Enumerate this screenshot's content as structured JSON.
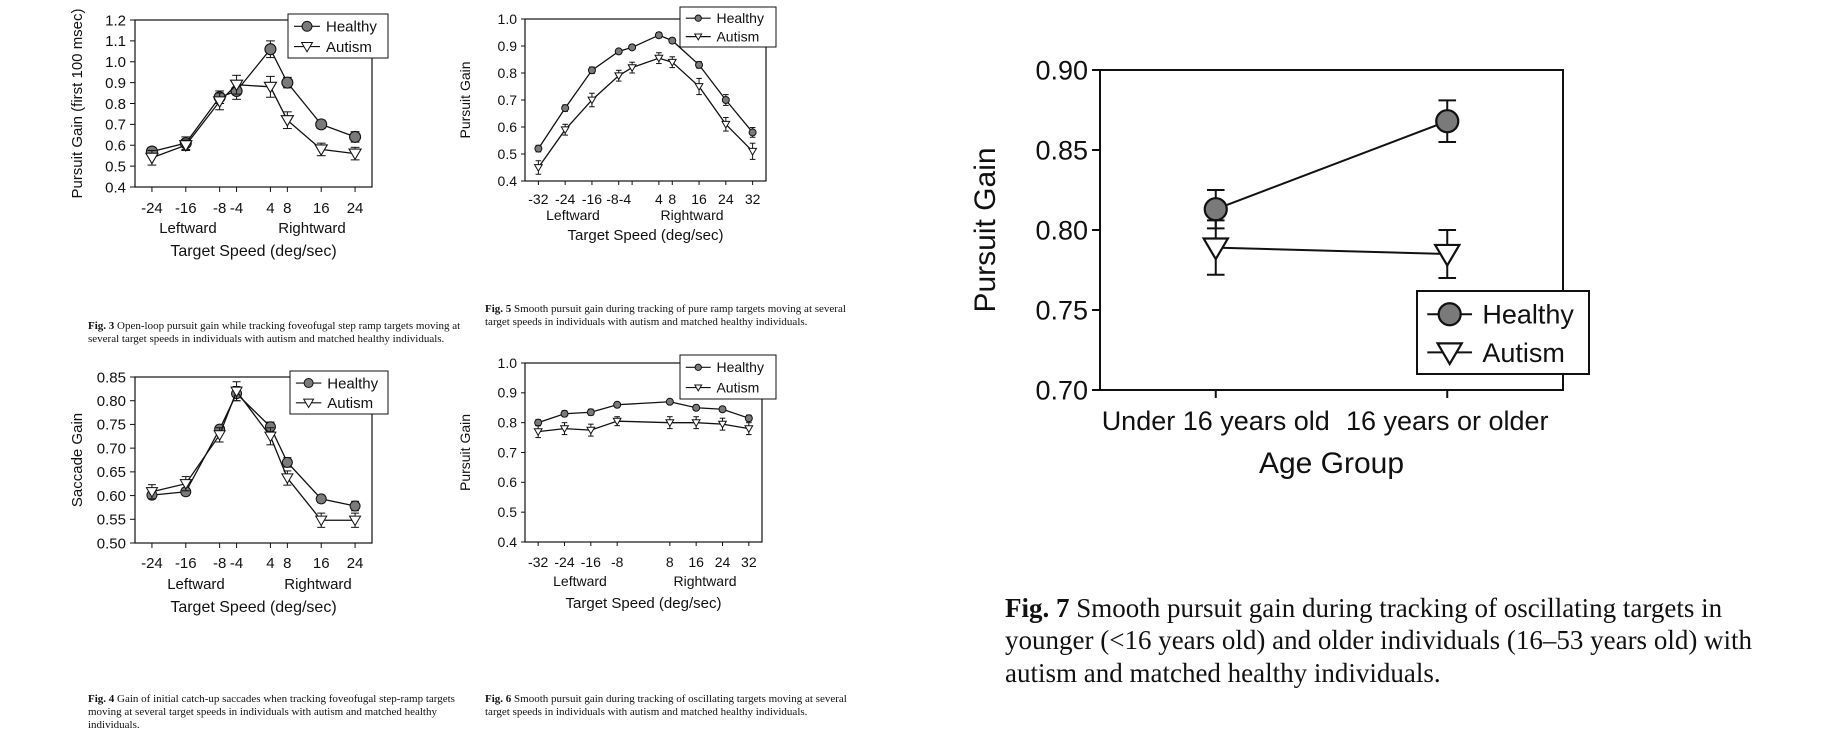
{
  "figures": [
    {
      "chart_data": {
        "type": "line",
        "ylabel": "Pursuit Gain (first 100 msec)",
        "xlabel": "Target Speed (deg/sec)",
        "ylim": [
          0.4,
          1.2
        ],
        "yticks": [
          "0.4",
          "0.5",
          "0.6",
          "0.7",
          "0.8",
          "0.9",
          "1.0",
          "1.1",
          "1.2"
        ],
        "x_positions": [
          -24,
          -16,
          -8,
          -4,
          4,
          8,
          16,
          24
        ],
        "xtick_labels": [
          "-24",
          "-16",
          "-8",
          "-4",
          "4",
          "8",
          "16",
          "24"
        ],
        "direction_labels": [
          "Leftward",
          "Rightward"
        ],
        "legend_position": "top-right",
        "series": [
          {
            "name": "Healthy",
            "marker": "circle",
            "values": [
              0.57,
              0.61,
              0.83,
              0.86,
              1.06,
              0.9,
              0.7,
              0.64
            ],
            "errors": [
              0.02,
              0.03,
              0.03,
              0.04,
              0.04,
              0.025,
              0.02,
              0.025
            ]
          },
          {
            "name": "Autism",
            "marker": "triangle",
            "values": [
              0.54,
              0.6,
              0.81,
              0.89,
              0.88,
              0.72,
              0.58,
              0.56
            ],
            "errors": [
              0.035,
              0.025,
              0.04,
              0.045,
              0.05,
              0.04,
              0.03,
              0.03
            ]
          }
        ]
      },
      "caption": {
        "label": "Fig. 3",
        "text": "Open-loop pursuit gain while tracking foveofugal step ramp targets moving at several target speeds in individuals with autism and matched healthy individuals."
      }
    },
    {
      "chart_data": {
        "type": "line",
        "ylabel": "Pursuit Gain",
        "xlabel": "Target Speed (deg/sec)",
        "ylim": [
          0.4,
          1.0
        ],
        "yticks": [
          "0.4",
          "0.5",
          "0.6",
          "0.7",
          "0.8",
          "0.9",
          "1.0"
        ],
        "x_positions": [
          -32,
          -24,
          -16,
          -8,
          -4,
          4,
          8,
          16,
          24,
          32
        ],
        "xtick_labels": [
          "-32",
          "-24",
          "-16",
          "-8-4",
          "",
          "4",
          "8",
          "16",
          "24",
          "32"
        ],
        "direction_labels": [
          "Leftward",
          "Rightward"
        ],
        "legend_position": "top-right",
        "series": [
          {
            "name": "Healthy",
            "marker": "circle",
            "values": [
              0.52,
              0.67,
              0.81,
              0.88,
              0.895,
              0.94,
              0.92,
              0.83,
              0.7,
              0.58
            ],
            "errors": [
              0.012,
              0.012,
              0.012,
              0.008,
              0.008,
              0.01,
              0.01,
              0.012,
              0.02,
              0.018
            ]
          },
          {
            "name": "Autism",
            "marker": "triangle",
            "values": [
              0.45,
              0.59,
              0.7,
              0.79,
              0.82,
              0.855,
              0.84,
              0.75,
              0.61,
              0.51
            ],
            "errors": [
              0.025,
              0.02,
              0.025,
              0.02,
              0.02,
              0.02,
              0.02,
              0.03,
              0.025,
              0.03
            ]
          }
        ]
      },
      "caption": {
        "label": "Fig. 5",
        "text": "Smooth pursuit gain during tracking of pure ramp targets moving at several target speeds in individuals with autism and matched healthy individuals."
      }
    },
    {
      "chart_data": {
        "type": "line",
        "ylabel": "Saccade Gain",
        "xlabel": "Target Speed (deg/sec)",
        "ylim": [
          0.5,
          0.85
        ],
        "yticks": [
          "0.50",
          "0.55",
          "0.60",
          "0.65",
          "0.70",
          "0.75",
          "0.80",
          "0.85"
        ],
        "x_positions": [
          -24,
          -16,
          -8,
          -4,
          4,
          8,
          16,
          24
        ],
        "xtick_labels": [
          "-24",
          "-16",
          "-8",
          "-4",
          "4",
          "8",
          "16",
          "24"
        ],
        "direction_labels": [
          "Leftward",
          "Rightward"
        ],
        "legend_position": "top-right",
        "series": [
          {
            "name": "Healthy",
            "marker": "circle",
            "values": [
              0.601,
              0.608,
              0.74,
              0.815,
              0.745,
              0.67,
              0.593,
              0.578
            ],
            "errors": [
              0.008,
              0.008,
              0.008,
              0.015,
              0.01,
              0.01,
              0.008,
              0.01
            ]
          },
          {
            "name": "Autism",
            "marker": "triangle",
            "values": [
              0.608,
              0.625,
              0.728,
              0.82,
              0.725,
              0.637,
              0.548,
              0.548
            ],
            "errors": [
              0.015,
              0.015,
              0.015,
              0.02,
              0.018,
              0.015,
              0.015,
              0.015
            ]
          }
        ]
      },
      "caption": {
        "label": "Fig. 4",
        "text": "Gain of initial catch-up saccades when tracking foveofugal step-ramp targets moving at several target speeds in individuals with autism and matched healthy individuals."
      }
    },
    {
      "chart_data": {
        "type": "line",
        "ylabel": "Pursuit Gain",
        "xlabel": "Target Speed (deg/sec)",
        "ylim": [
          0.4,
          1.0
        ],
        "yticks": [
          "0.4",
          "0.5",
          "0.6",
          "0.7",
          "0.8",
          "0.9",
          "1.0"
        ],
        "x_positions": [
          -32,
          -24,
          -16,
          -8,
          8,
          16,
          24,
          32
        ],
        "xtick_labels": [
          "-32",
          "-24",
          "-16",
          "-8",
          "8",
          "16",
          "24",
          "32"
        ],
        "direction_labels": [
          "Leftward",
          "Rightward"
        ],
        "legend_position": "top-right",
        "series": [
          {
            "name": "Healthy",
            "marker": "circle",
            "values": [
              0.8,
              0.83,
              0.835,
              0.86,
              0.87,
              0.85,
              0.845,
              0.815
            ],
            "errors": [
              0.01,
              0.01,
              0.01,
              0.008,
              0.008,
              0.008,
              0.008,
              0.01
            ]
          },
          {
            "name": "Autism",
            "marker": "triangle",
            "values": [
              0.77,
              0.78,
              0.775,
              0.805,
              0.8,
              0.8,
              0.795,
              0.78
            ],
            "errors": [
              0.02,
              0.02,
              0.02,
              0.015,
              0.02,
              0.02,
              0.02,
              0.02
            ]
          }
        ]
      },
      "caption": {
        "label": "Fig. 6",
        "text": "Smooth pursuit gain during tracking of oscillating targets moving at several target speeds in individuals with autism and matched healthy individuals."
      }
    },
    {
      "chart_data": {
        "type": "line",
        "ylabel": "Pursuit Gain",
        "xlabel": "Age Group",
        "ylim": [
          0.7,
          0.9
        ],
        "yticks": [
          "0.70",
          "0.75",
          "0.80",
          "0.85",
          "0.90"
        ],
        "categories": [
          "Under 16 years old",
          "16 years or older"
        ],
        "legend_position": "bottom-right",
        "series": [
          {
            "name": "Healthy",
            "marker": "circle",
            "values": [
              0.813,
              0.868
            ],
            "errors": [
              0.012,
              0.013
            ]
          },
          {
            "name": "Autism",
            "marker": "triangle",
            "values": [
              0.789,
              0.785
            ],
            "errors": [
              0.017,
              0.015
            ]
          }
        ]
      },
      "caption": {
        "label": "Fig. 7",
        "text": "Smooth pursuit gain during tracking of oscillating targets in younger (<16 years old) and older individuals (16–53 years old) with autism and matched healthy individuals."
      }
    }
  ]
}
